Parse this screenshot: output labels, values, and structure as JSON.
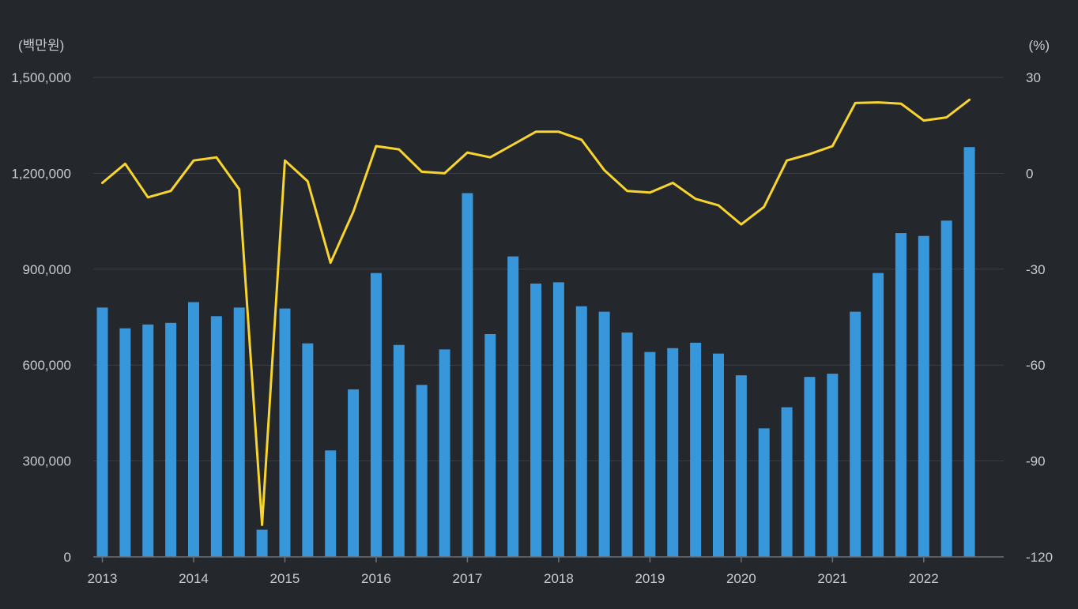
{
  "chart_data": {
    "type": "bar",
    "left_unit": "(백만원)",
    "right_unit": "(%)",
    "left_axis": {
      "min": 0,
      "max": 1500000,
      "ticks": [
        0,
        300000,
        600000,
        900000,
        1200000,
        1500000
      ],
      "tick_labels": [
        "0",
        "300,000",
        "600,000",
        "900,000",
        "1,200,000",
        "1,500,000"
      ]
    },
    "right_axis": {
      "min": -120,
      "max": 30,
      "ticks": [
        -120,
        -90,
        -60,
        -30,
        0,
        30
      ],
      "tick_labels": [
        "-120",
        "-90",
        "-60",
        "-30",
        "0",
        "30"
      ]
    },
    "x_tick_labels": [
      "2013",
      "2014",
      "2015",
      "2016",
      "2017",
      "2018",
      "2019",
      "2020",
      "2021",
      "2022"
    ],
    "quarters_per_year": 4,
    "series": [
      {
        "name": "bars",
        "type": "bar",
        "axis": "left",
        "color": "#3896db",
        "values": [
          780000,
          715000,
          727000,
          732000,
          797000,
          753000,
          780000,
          85000,
          777000,
          668000,
          333000,
          524000,
          888000,
          663000,
          538000,
          649000,
          1138000,
          697000,
          940000,
          855000,
          859000,
          784000,
          767000,
          702000,
          641000,
          653000,
          670000,
          636000,
          568000,
          402000,
          468000,
          563000,
          573000,
          767000,
          888000,
          1013000,
          1004000,
          1052000,
          1282000
        ]
      },
      {
        "name": "line",
        "type": "line",
        "axis": "right",
        "color": "#f8d52e",
        "values": [
          -3,
          3,
          -7.5,
          -5.5,
          4,
          5,
          -5,
          -110,
          4,
          -2.5,
          -28,
          -12,
          8.5,
          7.5,
          0.5,
          0,
          6.5,
          5,
          9,
          13,
          13,
          10.5,
          1,
          -5.5,
          -6,
          -3,
          -8,
          -10,
          -16,
          -10.5,
          4,
          6,
          8.5,
          22,
          22.2,
          21.8,
          16.5,
          17.5,
          23
        ]
      }
    ]
  }
}
